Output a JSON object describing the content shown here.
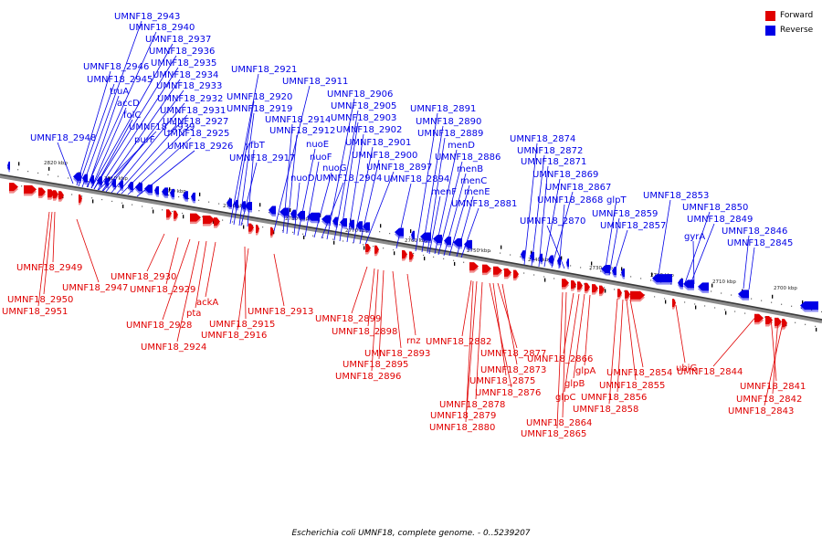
{
  "legend": [
    {
      "name": "Forward",
      "color": "#e00000"
    },
    {
      "name": "Reverse",
      "color": "#0000e6"
    }
  ],
  "caption": "Escherichia coli UMNF18, complete genome. - 0..5239207",
  "axis_ticks": [
    "2820 kbp",
    "2810 kbp",
    "2800 kbp",
    "2790 kbp",
    "2780 kbp",
    "2770 kbp",
    "2760 kbp",
    "2750 kbp",
    "2740 kbp",
    "2730 kbp",
    "2720 kbp",
    "2710 kbp",
    "2700 kbp"
  ],
  "reverse_labels": [
    "UMNF18_2943",
    "UMNF18_2940",
    "UMNF18_2937",
    "UMNF18_2936",
    "UMNF18_2935",
    "UMNF18_2946",
    "UMNF18_2934",
    "UMNF18_2945",
    "UMNF18_2933",
    "truA",
    "UMNF18_2932",
    "accD",
    "UMNF18_2931",
    "folC",
    "UMNF18_2927",
    "UMNF18_2939",
    "UMNF18_2925",
    "UMNF18_2948",
    "purF",
    "UMNF18_2926",
    "UMNF18_2921",
    "UMNF18_2920",
    "UMNF18_2919",
    "yfbT",
    "UMNF18_2917",
    "UMNF18_2911",
    "UMNF18_2914",
    "UMNF18_2912",
    "nuoE",
    "nuoF",
    "nuoG",
    "nuoD",
    "UMNF18_2906",
    "UMNF18_2905",
    "UMNF18_2903",
    "UMNF18_2902",
    "UMNF18_2901",
    "UMNF18_2900",
    "UMNF18_2897",
    "UMNF18_2904",
    "UMNF18_2894",
    "UMNF18_2891",
    "UMNF18_2890",
    "UMNF18_2889",
    "menD",
    "UMNF18_2886",
    "menB",
    "menC",
    "menF",
    "menE",
    "UMNF18_2881",
    "UMNF18_2874",
    "UMNF18_2872",
    "UMNF18_2871",
    "UMNF18_2869",
    "UMNF18_2867",
    "UMNF18_2868",
    "glpT",
    "UMNF18_2859",
    "UMNF18_2870",
    "UMNF18_2857",
    "UMNF18_2853",
    "UMNF18_2850",
    "UMNF18_2849",
    "gyrA",
    "UMNF18_2846",
    "UMNF18_2845"
  ],
  "forward_labels": [
    "UMNF18_2949",
    "UMNF18_2947",
    "UMNF18_2950",
    "UMNF18_2951",
    "UMNF18_2930",
    "UMNF18_2929",
    "ackA",
    "pta",
    "UMNF18_2928",
    "UMNF18_2924",
    "UMNF18_2915",
    "UMNF18_2916",
    "UMNF18_2913",
    "UMNF18_2899",
    "UMNF18_2898",
    "rnz",
    "UMNF18_2893",
    "UMNF18_2895",
    "UMNF18_2896",
    "UMNF18_2882",
    "UMNF18_2877",
    "UMNF18_2873",
    "UMNF18_2875",
    "UMNF18_2876",
    "UMNF18_2878",
    "UMNF18_2879",
    "UMNF18_2880",
    "UMNF18_2866",
    "glpA",
    "glpB",
    "glpC",
    "UMNF18_2864",
    "UMNF18_2865",
    "UMNF18_2854",
    "UMNF18_2855",
    "UMNF18_2856",
    "UMNF18_2858",
    "ubiG",
    "UMNF18_2844",
    "UMNF18_2841",
    "UMNF18_2842",
    "UMNF18_2843"
  ]
}
